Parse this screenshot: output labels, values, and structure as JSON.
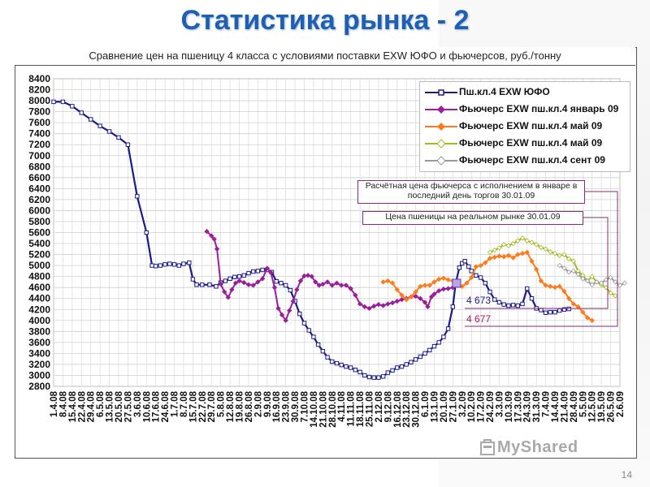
{
  "slide": {
    "title": "Статистика рынка - 2",
    "page_number": "14",
    "watermark": "MyShared"
  },
  "chart_data": {
    "type": "line",
    "title": "Сравнение цен на пшеницу 4 класса с условиями поставки EXW ЮФО и фьючерсов, руб./тонну",
    "xlabel": "",
    "ylabel": "",
    "ylim": [
      2800,
      8400
    ],
    "yticks": [
      2800,
      3000,
      3200,
      3400,
      3600,
      3800,
      4000,
      4200,
      4400,
      4600,
      4800,
      5000,
      5200,
      5400,
      5600,
      5800,
      6000,
      6200,
      6400,
      6600,
      6800,
      7000,
      7200,
      7400,
      7600,
      7800,
      8000,
      8200,
      8400
    ],
    "categories": [
      "1.4.08",
      "8.4.08",
      "15.4.08",
      "22.4.08",
      "29.4.08",
      "6.5.08",
      "13.5.08",
      "20.5.08",
      "27.5.08",
      "3.6.08",
      "10.6.08",
      "17.6.08",
      "24.6.08",
      "1.7.08",
      "8.7.08",
      "15.7.08",
      "22.7.08",
      "29.7.08",
      "5.8.08",
      "12.8.08",
      "19.8.08",
      "26.8.08",
      "2.9.08",
      "9.9.08",
      "16.9.08",
      "23.9.08",
      "30.9.08",
      "7.10.08",
      "14.10.08",
      "21.10.08",
      "28.10.08",
      "4.11.08",
      "11.11.08",
      "18.11.08",
      "25.11.08",
      "2.12.08",
      "9.12.08",
      "16.12.08",
      "23.12.08",
      "30.12.08",
      "6.1.09",
      "13.1.09",
      "20.1.09",
      "27.1.09",
      "3.2.09",
      "10.2.09",
      "17.2.09",
      "24.2.09",
      "3.3.09",
      "10.3.09",
      "17.3.09",
      "24.3.09",
      "31.3.09",
      "7.4.09",
      "14.4.09",
      "21.4.09",
      "28.4.09",
      "5.5.09",
      "12.5.09",
      "19.5.09",
      "26.5.09",
      "2.6.09"
    ],
    "grid": true,
    "legend_position": "top-right",
    "series": [
      {
        "name": "Пш.кл.4 EXW ЮФО",
        "color": "#1a1a8c",
        "marker": "square",
        "points": [
          [
            0,
            7980
          ],
          [
            1,
            7980
          ],
          [
            2,
            7900
          ],
          [
            3,
            7780
          ],
          [
            4,
            7660
          ],
          [
            5,
            7540
          ],
          [
            6,
            7440
          ],
          [
            7,
            7330
          ],
          [
            8,
            7200
          ],
          [
            9,
            6260
          ],
          [
            10,
            5600
          ],
          [
            10.6,
            5000
          ],
          [
            11,
            4990
          ],
          [
            11.5,
            5000
          ],
          [
            12,
            5020
          ],
          [
            12.5,
            5030
          ],
          [
            13,
            5020
          ],
          [
            13.5,
            5000
          ],
          [
            14,
            5030
          ],
          [
            14.6,
            5050
          ],
          [
            15,
            4750
          ],
          [
            15.4,
            4650
          ],
          [
            16,
            4650
          ],
          [
            16.8,
            4650
          ],
          [
            17.5,
            4620
          ],
          [
            18,
            4690
          ],
          [
            18.5,
            4720
          ],
          [
            19,
            4760
          ],
          [
            19.5,
            4790
          ],
          [
            20,
            4800
          ],
          [
            20.5,
            4820
          ],
          [
            21,
            4860
          ],
          [
            21.5,
            4890
          ],
          [
            22,
            4900
          ],
          [
            22.5,
            4920
          ],
          [
            23,
            4920
          ],
          [
            23.5,
            4880
          ],
          [
            24,
            4710
          ],
          [
            24.5,
            4680
          ],
          [
            25,
            4640
          ],
          [
            25.5,
            4550
          ],
          [
            26,
            4350
          ],
          [
            26.5,
            4120
          ],
          [
            27,
            3950
          ],
          [
            27.5,
            3820
          ],
          [
            28,
            3700
          ],
          [
            28.5,
            3560
          ],
          [
            29,
            3440
          ],
          [
            29.5,
            3330
          ],
          [
            30,
            3250
          ],
          [
            30.5,
            3220
          ],
          [
            31,
            3190
          ],
          [
            31.5,
            3160
          ],
          [
            32,
            3140
          ],
          [
            32.5,
            3100
          ],
          [
            33,
            3060
          ],
          [
            33.5,
            3000
          ],
          [
            34,
            2970
          ],
          [
            34.5,
            2960
          ],
          [
            35,
            2960
          ],
          [
            35.5,
            2980
          ],
          [
            36,
            3050
          ],
          [
            36.5,
            3090
          ],
          [
            37,
            3140
          ],
          [
            37.5,
            3160
          ],
          [
            38,
            3200
          ],
          [
            38.5,
            3240
          ],
          [
            39,
            3290
          ],
          [
            39.5,
            3340
          ],
          [
            40,
            3400
          ],
          [
            40.5,
            3460
          ],
          [
            41,
            3530
          ],
          [
            41.5,
            3600
          ],
          [
            42,
            3700
          ],
          [
            42.5,
            3850
          ],
          [
            43,
            4250
          ],
          [
            43.3,
            4673
          ],
          [
            43.7,
            4960
          ],
          [
            44,
            5040
          ],
          [
            44.3,
            5080
          ],
          [
            44.7,
            4980
          ],
          [
            45,
            4900
          ],
          [
            45.5,
            4820
          ],
          [
            46,
            4780
          ],
          [
            46.5,
            4680
          ],
          [
            47,
            4520
          ],
          [
            47.5,
            4380
          ],
          [
            48,
            4330
          ],
          [
            48.5,
            4290
          ],
          [
            49,
            4270
          ],
          [
            49.5,
            4280
          ],
          [
            50,
            4270
          ],
          [
            50.5,
            4300
          ],
          [
            51,
            4580
          ],
          [
            51.5,
            4400
          ],
          [
            52,
            4220
          ],
          [
            52.5,
            4190
          ],
          [
            53,
            4140
          ],
          [
            53.5,
            4150
          ],
          [
            54,
            4150
          ],
          [
            54.5,
            4180
          ],
          [
            55,
            4200
          ],
          [
            55.5,
            4210
          ]
        ]
      },
      {
        "name": "Фьючерс EXW пш.кл.4 январь 09",
        "color": "#9a1f9a",
        "marker": "diamond",
        "points": [
          [
            16.5,
            5620
          ],
          [
            17,
            5540
          ],
          [
            17.3,
            5480
          ],
          [
            17.6,
            5300
          ],
          [
            18,
            4660
          ],
          [
            18.4,
            4520
          ],
          [
            18.8,
            4420
          ],
          [
            19.2,
            4560
          ],
          [
            19.6,
            4680
          ],
          [
            20,
            4720
          ],
          [
            20.5,
            4690
          ],
          [
            21,
            4650
          ],
          [
            21.5,
            4640
          ],
          [
            22,
            4700
          ],
          [
            22.5,
            4760
          ],
          [
            23,
            4950
          ],
          [
            23.4,
            4870
          ],
          [
            23.8,
            4600
          ],
          [
            24.2,
            4220
          ],
          [
            24.6,
            4100
          ],
          [
            25,
            4000
          ],
          [
            25.4,
            4180
          ],
          [
            25.8,
            4350
          ],
          [
            26.2,
            4560
          ],
          [
            26.6,
            4720
          ],
          [
            27,
            4810
          ],
          [
            27.4,
            4820
          ],
          [
            27.8,
            4800
          ],
          [
            28.2,
            4700
          ],
          [
            28.6,
            4640
          ],
          [
            29,
            4660
          ],
          [
            29.5,
            4700
          ],
          [
            30,
            4640
          ],
          [
            30.5,
            4680
          ],
          [
            31,
            4640
          ],
          [
            31.5,
            4640
          ],
          [
            32,
            4580
          ],
          [
            32.5,
            4460
          ],
          [
            33,
            4300
          ],
          [
            33.5,
            4250
          ],
          [
            34,
            4220
          ],
          [
            34.5,
            4260
          ],
          [
            35,
            4290
          ],
          [
            35.5,
            4270
          ],
          [
            36,
            4300
          ],
          [
            36.5,
            4320
          ],
          [
            37,
            4350
          ],
          [
            37.5,
            4380
          ],
          [
            38,
            4400
          ],
          [
            38.5,
            4430
          ],
          [
            39,
            4440
          ],
          [
            39.5,
            4400
          ],
          [
            40,
            4330
          ],
          [
            40.3,
            4250
          ],
          [
            40.7,
            4430
          ],
          [
            41,
            4480
          ],
          [
            41.5,
            4540
          ],
          [
            42,
            4570
          ],
          [
            42.5,
            4580
          ],
          [
            43,
            4600
          ],
          [
            43.4,
            4677
          ]
        ]
      },
      {
        "name": "Фьючерс EXW пш.кл.4 май 09",
        "color": "#ff7a1a",
        "marker": "diamond",
        "points": [
          [
            35.5,
            4700
          ],
          [
            36,
            4720
          ],
          [
            36.5,
            4680
          ],
          [
            37,
            4560
          ],
          [
            37.5,
            4460
          ],
          [
            38,
            4380
          ],
          [
            38.5,
            4430
          ],
          [
            39,
            4520
          ],
          [
            39.5,
            4620
          ],
          [
            40,
            4640
          ],
          [
            40.5,
            4640
          ],
          [
            41,
            4700
          ],
          [
            41.5,
            4750
          ],
          [
            42,
            4770
          ],
          [
            42.5,
            4740
          ],
          [
            43,
            4720
          ],
          [
            43.5,
            4650
          ],
          [
            44,
            4620
          ],
          [
            44.5,
            4680
          ],
          [
            45,
            4780
          ],
          [
            45.5,
            4980
          ],
          [
            46,
            5000
          ],
          [
            46.5,
            5050
          ],
          [
            47,
            5130
          ],
          [
            47.5,
            5150
          ],
          [
            48,
            5170
          ],
          [
            48.5,
            5160
          ],
          [
            49,
            5180
          ],
          [
            49.5,
            5140
          ],
          [
            50,
            5200
          ],
          [
            50.5,
            5220
          ],
          [
            51,
            5240
          ],
          [
            51.5,
            5080
          ],
          [
            52,
            4930
          ],
          [
            52.5,
            4720
          ],
          [
            53,
            4640
          ],
          [
            53.5,
            4620
          ],
          [
            54,
            4600
          ],
          [
            54.5,
            4620
          ],
          [
            55,
            4530
          ],
          [
            55.5,
            4400
          ],
          [
            56,
            4300
          ],
          [
            56.5,
            4250
          ],
          [
            57,
            4150
          ],
          [
            57.5,
            4050
          ],
          [
            58,
            4000
          ]
        ]
      },
      {
        "name": "Фьючерс EXW пш.кл.4 май 09",
        "color": "#a8b820",
        "marker": "diamond",
        "points": [
          [
            47,
            5240
          ],
          [
            47.5,
            5280
          ],
          [
            48,
            5320
          ],
          [
            48.5,
            5380
          ],
          [
            49,
            5360
          ],
          [
            49.5,
            5400
          ],
          [
            50,
            5450
          ],
          [
            50.5,
            5500
          ],
          [
            51,
            5450
          ],
          [
            51.5,
            5420
          ],
          [
            52,
            5380
          ],
          [
            52.5,
            5330
          ],
          [
            53,
            5300
          ],
          [
            53.5,
            5250
          ],
          [
            54,
            5220
          ],
          [
            54.5,
            5180
          ],
          [
            55,
            5200
          ],
          [
            55.5,
            5120
          ],
          [
            56,
            5080
          ],
          [
            56.5,
            4900
          ],
          [
            57,
            4820
          ],
          [
            57.5,
            4720
          ],
          [
            58,
            4800
          ],
          [
            58.5,
            4700
          ],
          [
            59,
            4650
          ],
          [
            59.5,
            4600
          ],
          [
            60,
            4500
          ],
          [
            60.5,
            4450
          ]
        ]
      },
      {
        "name": "Фьючерс EXW пш.кл.4 сент 09",
        "color": "#999999",
        "marker": "diamond",
        "points": [
          [
            54.5,
            5000
          ],
          [
            55,
            4950
          ],
          [
            55.5,
            4880
          ],
          [
            56,
            4900
          ],
          [
            56.5,
            4840
          ],
          [
            57,
            4760
          ],
          [
            57.5,
            4720
          ],
          [
            58,
            4650
          ],
          [
            58.5,
            4700
          ],
          [
            59,
            4680
          ],
          [
            59.5,
            4740
          ],
          [
            60,
            4780
          ],
          [
            60.5,
            4700
          ],
          [
            61,
            4640
          ],
          [
            61.5,
            4680
          ]
        ]
      }
    ],
    "annotations": {
      "futures_note": "Расчётная цена фьючерса с исполнением в январе в последний день торгов 30.01.09",
      "spot_note": "Цена пшеницы на реальном рынке 30.01.09",
      "value_spot": "4 673",
      "value_futures": "4 677",
      "value_spot_color": "#1a1a8c",
      "value_futures_color": "#b8145a"
    }
  }
}
